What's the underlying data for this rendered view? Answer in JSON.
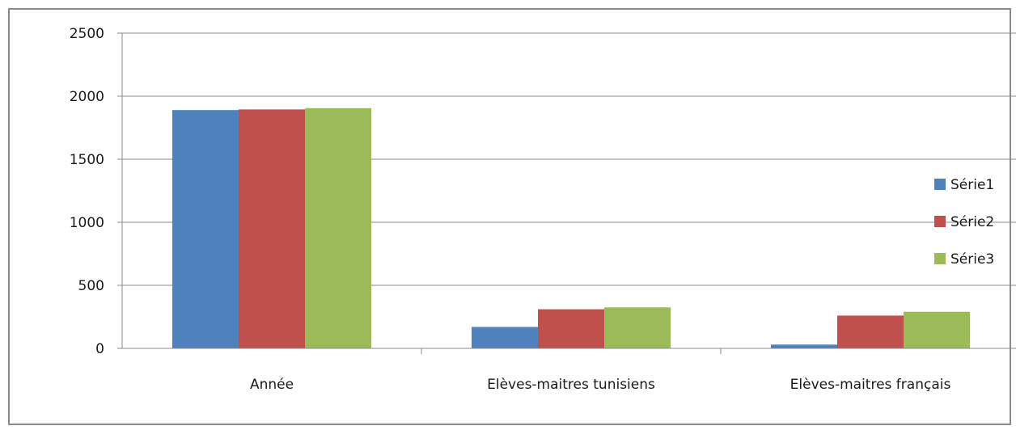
{
  "chart_data": {
    "type": "bar",
    "title": "",
    "xlabel": "",
    "ylabel": "",
    "categories": [
      "Année",
      "Elèves-maitres tunisiens",
      "Elèves-maitres français"
    ],
    "series": [
      {
        "name": "Série1",
        "color": "#4f81bd",
        "values": [
          1890,
          170,
          30
        ]
      },
      {
        "name": "Série2",
        "color": "#c0504d",
        "values": [
          1895,
          310,
          260
        ]
      },
      {
        "name": "Série3",
        "color": "#9bbb59",
        "values": [
          1905,
          325,
          290
        ]
      }
    ],
    "ylim": [
      0,
      2500
    ],
    "yticks": [
      0,
      500,
      1000,
      1500,
      2000,
      2500
    ],
    "grid": true,
    "legend": "right"
  }
}
